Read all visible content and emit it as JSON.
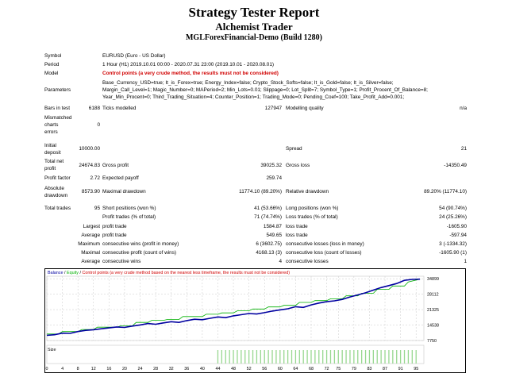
{
  "header": {
    "title": "Strategy Tester Report",
    "expert": "Alchemist Trader",
    "account": "MGLForexFinancial-Demo (Build 1280)"
  },
  "info": {
    "symbol_label": "Symbol",
    "symbol": "EURUSD (Euro - US Dollar)",
    "period_label": "Period",
    "period": "1 Hour (H1) 2019.10.01 00:00 - 2020.07.31 23:00 (2019.10.01 - 2020.08.01)",
    "model_label": "Model",
    "model": "Control points (a very crude method, the results must not be considered)",
    "params_label": "Parameters",
    "params_1": "Base_Currency_USD=true; It_is_Forex=true; Energy_Index=false; Crypto_Stock_Softs=false; It_is_Gold=false; It_is_Silver=false;",
    "params_2": "Margin_Call_Level=1; Magic_Number=0; MAPeriod=2; Min_Lots=0.01; Slippage=0; Lot_Split=7; Symbol_Type=1; Profit_Procent_Of_Balance=8;",
    "params_3": "Year_Min_Procent=0; Third_Trading_Situation=4; Counter_Position=1; Trading_Mode=0; Pending_Coef=100; Take_Profit_Add=0.001;"
  },
  "stats": {
    "bars_label": "Bars in test",
    "bars": "6188",
    "ticks_label": "Ticks modelled",
    "ticks": "127947",
    "quality_label": "Modelling quality",
    "quality": "n/a",
    "mismatch_1": "Mismatched",
    "mismatch_2": "charts",
    "mismatch_3": "errors",
    "mismatch": "0",
    "deposit_1": "Initial",
    "deposit_2": "deposit",
    "deposit": "10000.00",
    "spread_label": "Spread",
    "spread": "21",
    "netprofit_1": "Total net",
    "netprofit_2": "profit",
    "netprofit": "24674.83",
    "grossprofit_label": "Gross profit",
    "grossprofit": "39025.32",
    "grossloss_label": "Gross loss",
    "grossloss": "-14350.49",
    "pf_label": "Profit factor",
    "pf": "2.72",
    "ep_label": "Expected payoff",
    "ep": "259.74",
    "absdd_1": "Absolute",
    "absdd_2": "drawdown",
    "absdd": "8573.90",
    "maxdd_label": "Maximal drawdown",
    "maxdd": "11774.10 (89.20%)",
    "reldd_label": "Relative drawdown",
    "reldd": "89.20% (11774.10)",
    "trades_label": "Total trades",
    "trades": "95",
    "short_label": "Short positions (won %)",
    "short": "41 (53.66%)",
    "long_label": "Long positions (won %)",
    "long": "54 (90.74%)",
    "ptrades_label": "Profit trades (% of total)",
    "ptrades": "71 (74.74%)",
    "ltrades_label": "Loss trades (% of total)",
    "ltrades": "24 (25.26%)",
    "largest": "Largest",
    "average": "Average",
    "maximum": "Maximum",
    "maximal": "Maximal",
    "profit_trade": "profit trade",
    "loss_trade": "loss trade",
    "lpt": "1584.87",
    "llt": "-1605.90",
    "apt": "549.65",
    "alt": "-597.94",
    "cwm_label": "consecutive wins (profit in money)",
    "cwm": "6 (3602.75)",
    "clm_label": "consecutive losses (loss in money)",
    "clm": "3 (-1334.32)",
    "cpc_label": "consecutive profit (count of wins)",
    "cpc": "4168.13 (3)",
    "clc_label": "consecutive loss (count of losses)",
    "clc": "-1605.90 (1)",
    "acw_label": "consecutive wins",
    "acw": "4",
    "acl_label": "consecutive losses",
    "acl": "1"
  },
  "legend": {
    "balance": "Balance",
    "sep1": " / ",
    "equity": "Equity",
    "sep2": " / ",
    "note": "Control points (a very crude method based on the nearest less timeframe, the results must not be considered)"
  },
  "size_label": "Size",
  "colors": {
    "balance": "#0000a0",
    "equity": "#00b000",
    "note": "#d00000",
    "volume": "#98d890",
    "grid": "#c8c8c8"
  },
  "chart_data": {
    "type": "line",
    "title": "",
    "y_ticks": [
      7750,
      14538,
      21325,
      28112,
      34899
    ],
    "ylim": [
      7750,
      36000
    ],
    "x_ticks": [
      0,
      4,
      8,
      12,
      16,
      20,
      24,
      28,
      32,
      36,
      40,
      44,
      48,
      52,
      56,
      60,
      64,
      68,
      72,
      75,
      79,
      83,
      87,
      91,
      95
    ],
    "xlim": [
      0,
      97
    ],
    "series": [
      {
        "name": "Balance",
        "x": [
          0,
          2,
          4,
          6,
          8,
          10,
          12,
          14,
          16,
          18,
          20,
          22,
          24,
          26,
          28,
          30,
          32,
          34,
          36,
          38,
          40,
          42,
          44,
          46,
          48,
          50,
          52,
          54,
          56,
          58,
          60,
          62,
          64,
          66,
          68,
          70,
          72,
          74,
          76,
          78,
          80,
          82,
          84,
          86,
          88,
          90,
          92,
          94,
          96
        ],
        "values": [
          10000,
          10300,
          11000,
          10900,
          11700,
          12200,
          12500,
          12900,
          13300,
          13700,
          13500,
          14100,
          14600,
          15200,
          14900,
          15500,
          16000,
          15700,
          16500,
          17100,
          16900,
          17500,
          18100,
          17800,
          18600,
          19100,
          19600,
          19400,
          20000,
          20700,
          21200,
          21700,
          22600,
          22300,
          23400,
          24200,
          24800,
          25200,
          25800,
          26900,
          27800,
          28700,
          29900,
          31000,
          31900,
          32800,
          34200,
          34600,
          34700
        ]
      },
      {
        "name": "Equity",
        "x": [
          0,
          3,
          4,
          8,
          9,
          12,
          13,
          18,
          19,
          22,
          23,
          26,
          27,
          30,
          31,
          34,
          35,
          40,
          41,
          44,
          45,
          48,
          49,
          52,
          53,
          56,
          57,
          60,
          61,
          64,
          65,
          68,
          69,
          72,
          73,
          76,
          77,
          80,
          81,
          84,
          85,
          88,
          89,
          92,
          93,
          96
        ],
        "values": [
          10600,
          10600,
          11700,
          11700,
          12600,
          12600,
          13600,
          13600,
          14200,
          14200,
          15700,
          15700,
          16600,
          16600,
          17000,
          17000,
          18300,
          18300,
          19300,
          19300,
          19900,
          19900,
          20800,
          20800,
          21600,
          21600,
          22500,
          22500,
          23200,
          23200,
          24500,
          24500,
          25300,
          25300,
          26100,
          26100,
          27400,
          27400,
          28500,
          28500,
          30200,
          30200,
          31700,
          31700,
          33500,
          34700
        ]
      }
    ],
    "volume_ticks": [
      44,
      45,
      46,
      47,
      48,
      49,
      50,
      51,
      52,
      53,
      54,
      55,
      56,
      57,
      58,
      59,
      60,
      61,
      62,
      63,
      64,
      65,
      66,
      67,
      68,
      69,
      70,
      71,
      72,
      73,
      74,
      75,
      76,
      77,
      78,
      79,
      80,
      81,
      82,
      83,
      84,
      85,
      86,
      87,
      88,
      89,
      90,
      91,
      92,
      93,
      94,
      95
    ]
  }
}
